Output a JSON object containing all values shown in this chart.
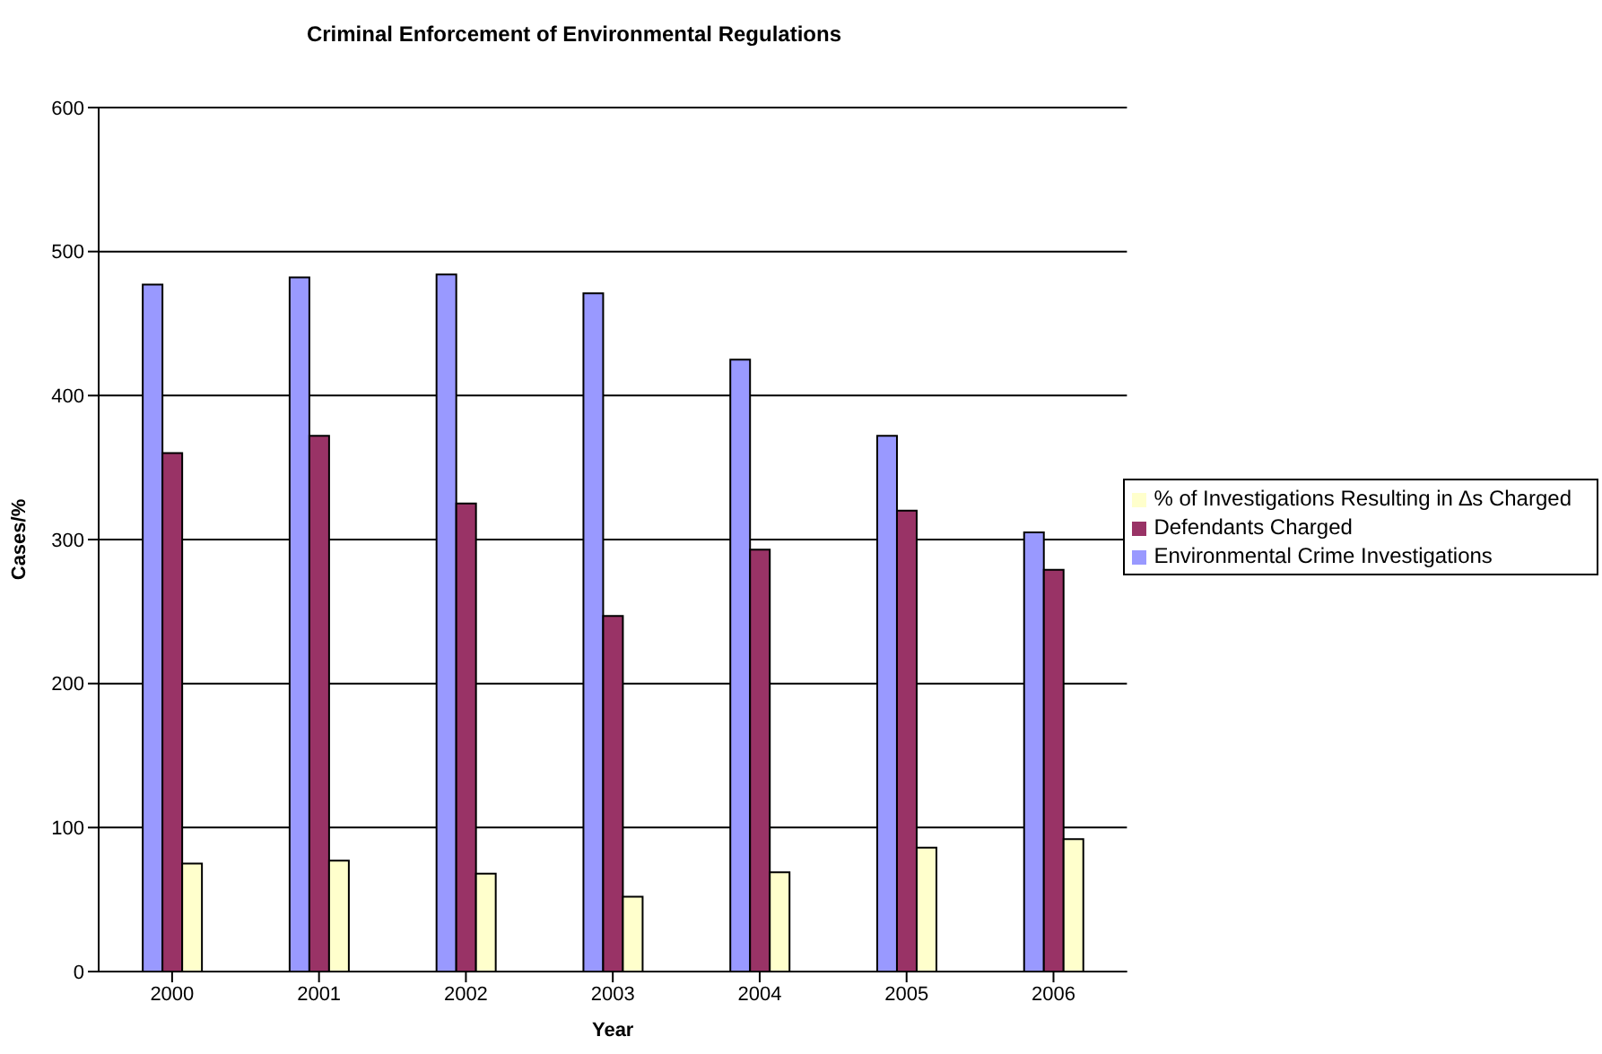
{
  "chart_data": {
    "type": "bar",
    "title": "Criminal Enforcement of Environmental Regulations",
    "xlabel": "Year",
    "ylabel": "Cases/%",
    "categories": [
      "2000",
      "2001",
      "2002",
      "2003",
      "2004",
      "2005",
      "2006"
    ],
    "series": [
      {
        "name": "Environmental Crime Investigations",
        "color": "#9999ff",
        "values": [
          477,
          482,
          484,
          471,
          425,
          372,
          305
        ]
      },
      {
        "name": "Defendants Charged",
        "color": "#993366",
        "values": [
          360,
          372,
          325,
          247,
          293,
          320,
          279
        ]
      },
      {
        "name": "% of Investigations Resulting in ∆s Charged",
        "color": "#ffffcc",
        "values": [
          75,
          77,
          68,
          52,
          69,
          86,
          92
        ]
      }
    ],
    "ylim": [
      0,
      600
    ],
    "yticks": [
      0,
      100,
      200,
      300,
      400,
      500,
      600
    ],
    "grid": "y",
    "legend": "right"
  }
}
